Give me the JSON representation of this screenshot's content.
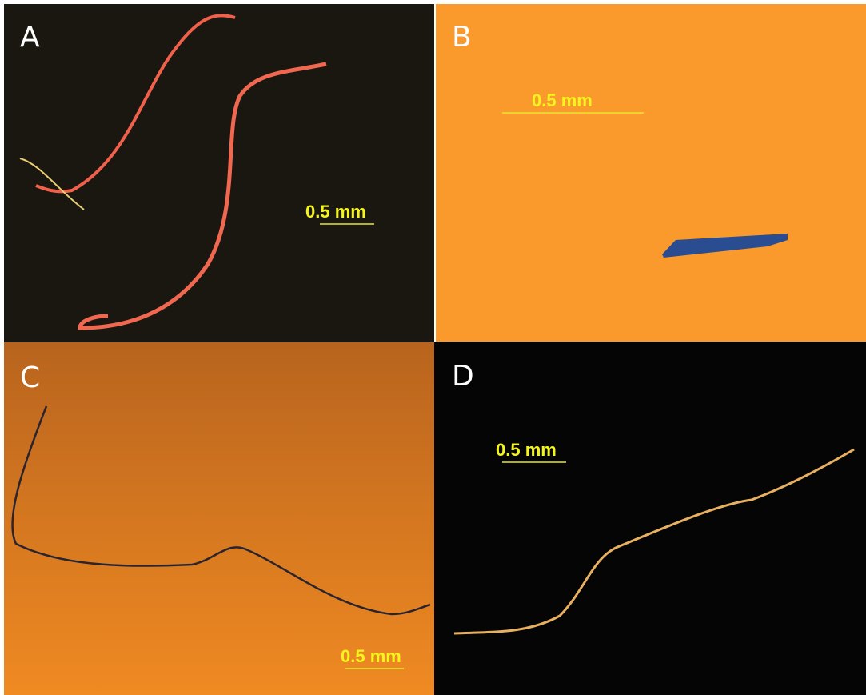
{
  "panels": [
    {
      "label": "A",
      "scale": "0.5 mm"
    },
    {
      "label": "B",
      "scale": "0.5 mm"
    },
    {
      "label": "C",
      "scale": "0.5 mm"
    },
    {
      "label": "D",
      "scale": "0.5 mm"
    }
  ]
}
